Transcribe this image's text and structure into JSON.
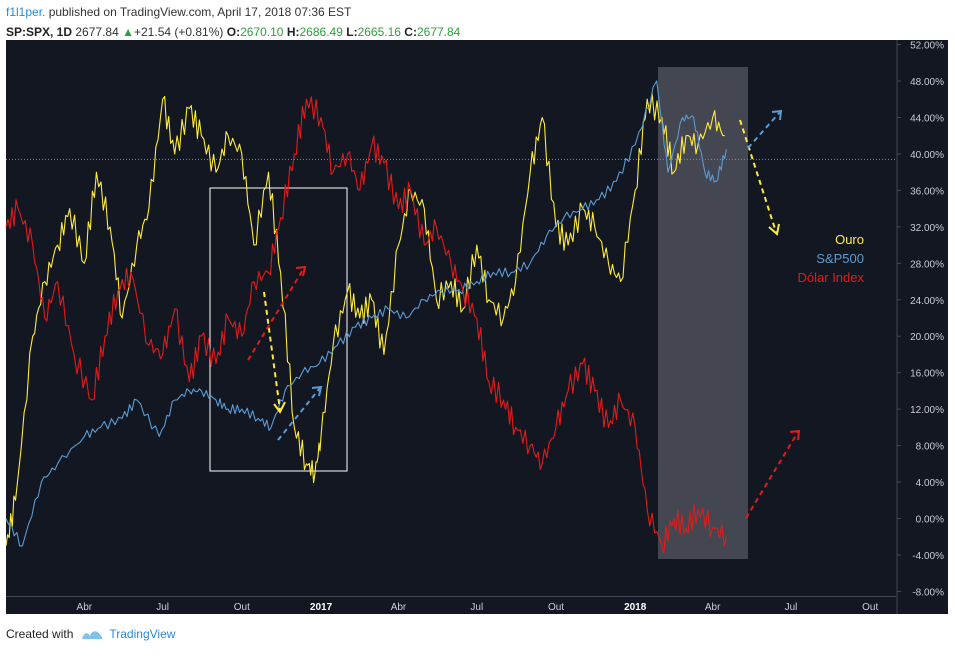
{
  "header": {
    "author": "f1l1per.",
    "published": " published on TradingView.com, April 17, 2018 07:36 EST",
    "symbol": "SP:SPX, 1D",
    "price": "2677.84",
    "change": "+21.54 (+0.81%)",
    "o_label": "O:",
    "o_value": "2670.10",
    "h_label": "H:",
    "h_value": "2686.49",
    "l_label": "L:",
    "l_value": "2665.16",
    "c_label": "C:",
    "c_value": "2677.84"
  },
  "footer": {
    "created_with": "Created with",
    "brand": "TradingView"
  },
  "chart_data": {
    "type": "line",
    "x_ticks": [
      "Abr",
      "Jul",
      "Out",
      "2017",
      "Abr",
      "Jul",
      "Out",
      "2018",
      "Abr",
      "Jul",
      "Out"
    ],
    "y_ticks": [
      "52.00%",
      "48.00%",
      "44.00%",
      "40.00%",
      "36.00%",
      "32.00%",
      "28.00%",
      "24.00%",
      "20.00%",
      "16.00%",
      "12.00%",
      "8.00%",
      "4.00%",
      "0.00%",
      "-4.00%",
      "-8.00%"
    ],
    "ylim": [
      -8.5,
      52.5
    ],
    "reference_line": 39.4,
    "legend": [
      {
        "name": "Ouro",
        "color": "#ffeb3b"
      },
      {
        "name": "S&P500",
        "color": "#5b9bd5"
      },
      {
        "name": "Dólar Index",
        "color": "#e21b1b"
      }
    ],
    "series": [
      {
        "name": "Ouro",
        "color": "#ffeb3b",
        "x": [
          "2016-01-01",
          "2016-01-12",
          "2016-02-01",
          "2016-02-15",
          "2016-03-01",
          "2016-03-15",
          "2016-04-01",
          "2016-04-15",
          "2016-05-01",
          "2016-05-15",
          "2016-06-01",
          "2016-06-15",
          "2016-07-01",
          "2016-07-15",
          "2016-08-01",
          "2016-08-15",
          "2016-09-01",
          "2016-09-15",
          "2016-10-01",
          "2016-10-15",
          "2016-11-01",
          "2016-11-15",
          "2016-12-01",
          "2016-12-15",
          "2016-12-25",
          "2017-01-01",
          "2017-01-15",
          "2017-02-01",
          "2017-02-15",
          "2017-03-01",
          "2017-03-15",
          "2017-04-01",
          "2017-04-15",
          "2017-05-01",
          "2017-05-15",
          "2017-06-01",
          "2017-06-15",
          "2017-07-01",
          "2017-07-15",
          "2017-08-01",
          "2017-08-15",
          "2017-09-01",
          "2017-09-15",
          "2017-10-01",
          "2017-10-15",
          "2017-11-01",
          "2017-11-15",
          "2017-12-01",
          "2017-12-15",
          "2018-01-01",
          "2018-01-15",
          "2018-02-01",
          "2018-02-15",
          "2018-03-01",
          "2018-03-15",
          "2018-04-01",
          "2018-04-15"
        ],
        "y": [
          -3,
          2,
          20,
          26,
          30,
          34,
          28,
          38,
          32,
          22,
          30,
          34,
          46,
          40,
          45,
          42,
          38,
          42,
          40,
          30,
          38,
          27,
          10,
          6,
          5,
          9,
          19,
          25,
          22,
          24,
          18,
          30,
          36,
          34,
          24,
          26,
          23,
          30,
          24,
          22,
          26,
          38,
          44,
          32,
          30,
          34,
          32,
          28,
          26,
          36,
          46,
          44,
          38,
          42,
          41,
          44,
          42
        ]
      },
      {
        "name": "S&P500",
        "color": "#5b9bd5",
        "x": [
          "2016-01-01",
          "2016-01-20",
          "2016-02-11",
          "2016-03-01",
          "2016-04-01",
          "2016-04-20",
          "2016-05-15",
          "2016-06-01",
          "2016-06-27",
          "2016-07-15",
          "2016-08-01",
          "2016-08-15",
          "2016-09-01",
          "2016-09-15",
          "2016-10-01",
          "2016-10-20",
          "2016-11-04",
          "2016-11-20",
          "2016-12-10",
          "2016-12-30",
          "2017-01-20",
          "2017-02-10",
          "2017-03-01",
          "2017-03-20",
          "2017-04-10",
          "2017-05-01",
          "2017-05-20",
          "2017-06-10",
          "2017-07-01",
          "2017-07-20",
          "2017-08-10",
          "2017-09-01",
          "2017-09-20",
          "2017-10-10",
          "2017-11-01",
          "2017-11-20",
          "2017-12-10",
          "2018-01-01",
          "2018-01-26",
          "2018-02-08",
          "2018-02-25",
          "2018-03-10",
          "2018-03-23",
          "2018-04-05",
          "2018-04-17"
        ],
        "y": [
          0,
          -3,
          4,
          6,
          9,
          10,
          11,
          13,
          9,
          13,
          14,
          14,
          13,
          12,
          12,
          11,
          10,
          14,
          16,
          17,
          19,
          21,
          22,
          23,
          22,
          24,
          25,
          25,
          26,
          27,
          27,
          28,
          31,
          33,
          34,
          35,
          37,
          41,
          48,
          38,
          44,
          44,
          38,
          37,
          40.5
        ]
      },
      {
        "name": "Dólar Index",
        "color": "#e21b1b",
        "x": [
          "2016-01-01",
          "2016-01-15",
          "2016-02-01",
          "2016-02-15",
          "2016-03-01",
          "2016-03-20",
          "2016-04-10",
          "2016-04-25",
          "2016-05-10",
          "2016-05-25",
          "2016-06-15",
          "2016-07-01",
          "2016-07-15",
          "2016-08-01",
          "2016-08-15",
          "2016-09-01",
          "2016-09-15",
          "2016-10-01",
          "2016-10-15",
          "2016-11-01",
          "2016-11-15",
          "2016-12-01",
          "2016-12-15",
          "2017-01-01",
          "2017-01-15",
          "2017-02-01",
          "2017-02-15",
          "2017-03-01",
          "2017-03-15",
          "2017-04-01",
          "2017-04-15",
          "2017-05-01",
          "2017-05-15",
          "2017-06-01",
          "2017-06-15",
          "2017-07-01",
          "2017-07-15",
          "2017-08-01",
          "2017-08-15",
          "2017-09-01",
          "2017-09-15",
          "2017-10-01",
          "2017-10-15",
          "2017-11-01",
          "2017-11-15",
          "2017-12-01",
          "2017-12-15",
          "2018-01-01",
          "2018-01-15",
          "2018-02-01",
          "2018-02-15",
          "2018-03-01",
          "2018-03-15",
          "2018-04-01",
          "2018-04-17"
        ],
        "y": [
          32,
          34,
          30,
          22,
          26,
          18,
          13,
          20,
          25,
          27,
          19,
          18,
          23,
          15,
          20,
          17,
          22,
          20,
          26,
          27,
          33,
          40,
          46,
          44,
          38,
          40,
          36,
          41,
          39,
          34,
          36,
          30,
          32,
          28,
          25,
          22,
          15,
          13,
          10,
          8,
          6,
          10,
          14,
          17,
          14,
          10,
          13,
          10,
          1,
          -3,
          0,
          -1,
          1,
          -1,
          -2
        ]
      }
    ]
  }
}
